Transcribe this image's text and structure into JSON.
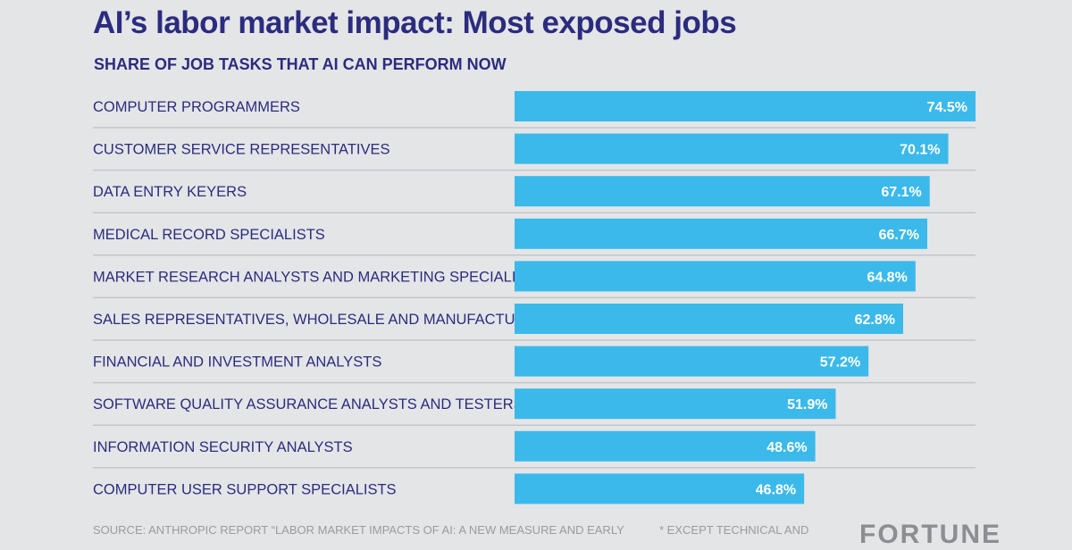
{
  "chart_data": {
    "type": "bar",
    "orientation": "horizontal",
    "title": "AI’s labor market impact: Most exposed jobs",
    "subtitle": "SHARE OF JOB TASKS THAT AI CAN PERFORM NOW",
    "categories": [
      "COMPUTER PROGRAMMERS",
      "CUSTOMER SERVICE REPRESENTATIVES",
      "DATA ENTRY KEYERS",
      "MEDICAL RECORD SPECIALISTS",
      "MARKET RESEARCH ANALYSTS AND MARKETING SPECIALISTS",
      "SALES REPRESENTATIVES, WHOLESALE AND MANUFACTURING*",
      "FINANCIAL AND INVESTMENT ANALYSTS",
      "SOFTWARE QUALITY ASSURANCE ANALYSTS AND TESTERS",
      "INFORMATION SECURITY ANALYSTS",
      "COMPUTER USER SUPPORT SPECIALISTS"
    ],
    "values": [
      74.5,
      70.1,
      67.1,
      66.7,
      64.8,
      62.8,
      57.2,
      51.9,
      48.6,
      46.8
    ],
    "data_labels": [
      "74.5%",
      "70.1%",
      "67.1%",
      "66.7%",
      "64.8%",
      "62.8%",
      "57.2%",
      "51.9%",
      "48.6%",
      "46.8%"
    ],
    "xlim": [
      0,
      100
    ],
    "grid": false,
    "colors": {
      "bar": "#3bb9ea",
      "text": "#2b2c7e",
      "background": "#e4e5e7",
      "separator": "#c4c5c9"
    }
  },
  "footer": {
    "source": "SOURCE: ANTHROPIC REPORT “LABOR MARKET IMPACTS OF AI: A NEW MEASURE AND EARLY",
    "note": "*  EXCEPT TECHNICAL AND",
    "logo": "FORTUNE"
  }
}
